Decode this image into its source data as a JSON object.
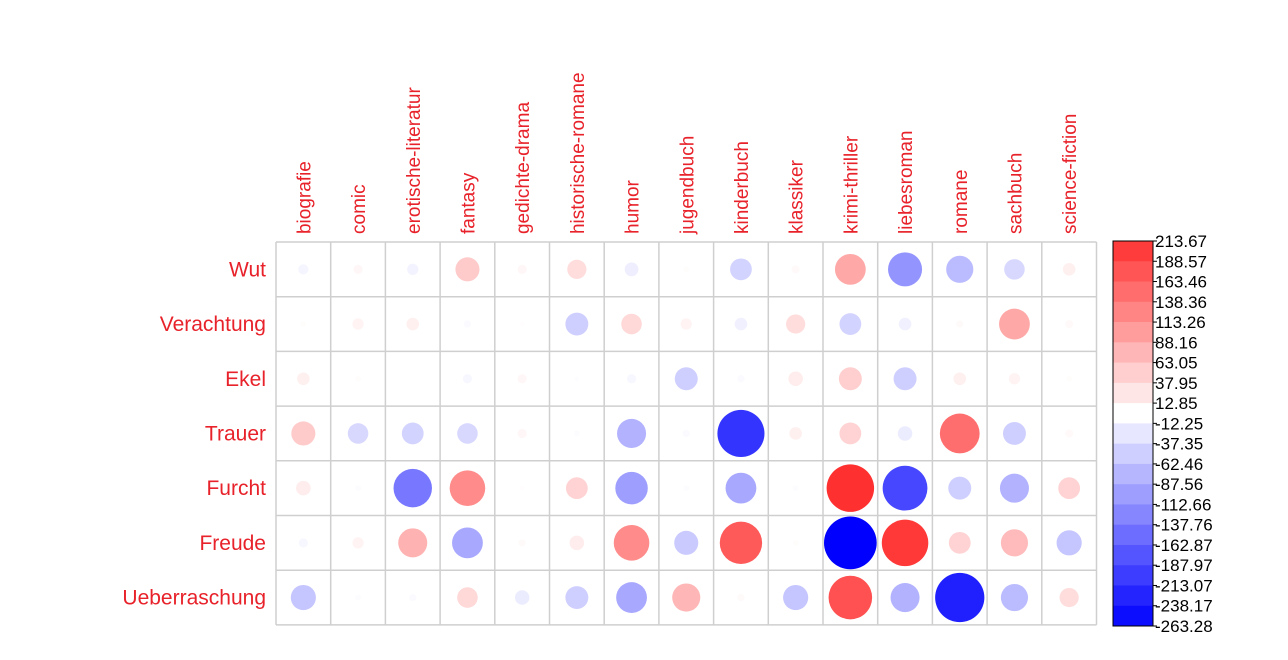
{
  "chart_data": {
    "type": "heatmap",
    "columns": [
      "biografie",
      "comic",
      "erotische-literatur",
      "fantasy",
      "gedichte-drama",
      "historische-romane",
      "humor",
      "jugendbuch",
      "kinderbuch",
      "klassiker",
      "krimi-thriller",
      "liebesroman",
      "romane",
      "sachbuch",
      "science-fiction"
    ],
    "rows": [
      "Wut",
      "Verachtung",
      "Ekel",
      "Trauer",
      "Furcht",
      "Freude",
      "Ueberraschung"
    ],
    "values": [
      [
        -10,
        8,
        -12,
        55,
        8,
        35,
        -18,
        3,
        -45,
        6,
        90,
        -110,
        -70,
        -40,
        15
      ],
      [
        3,
        12,
        15,
        -5,
        2,
        -50,
        40,
        12,
        -15,
        35,
        -45,
        -15,
        5,
        90,
        6
      ],
      [
        15,
        3,
        0,
        -8,
        8,
        -2,
        -8,
        -50,
        -5,
        20,
        50,
        -50,
        15,
        12,
        3
      ],
      [
        55,
        -40,
        -45,
        -40,
        8,
        -3,
        -80,
        -5,
        -210,
        15,
        45,
        -20,
        150,
        -50,
        6
      ],
      [
        20,
        -3,
        -140,
        120,
        2,
        45,
        -100,
        -3,
        -90,
        -3,
        213.67,
        -190,
        -50,
        -80,
        45
      ],
      [
        -8,
        12,
        80,
        -90,
        5,
        20,
        120,
        -55,
        170,
        3,
        -263.28,
        205,
        45,
        70,
        -60
      ],
      [
        -60,
        -3,
        -5,
        40,
        -20,
        -50,
        -90,
        75,
        5,
        -60,
        180,
        -80,
        -230,
        -70,
        35
      ]
    ],
    "color_scale": {
      "min": -263.28,
      "max": 213.67,
      "tick_labels": [
        "213.67",
        "188.57",
        "163.46",
        "138.36",
        "113.26",
        "88.16",
        "63.05",
        "37.95",
        "12.85",
        "-12.25",
        "-37.35",
        "-62.46",
        "-87.56",
        "-112.66",
        "-137.76",
        "-162.87",
        "-187.97",
        "-213.07",
        "-238.17",
        "-263.28"
      ],
      "positive_color": "#FF0000",
      "negative_color": "#0000FF"
    },
    "label_color": "#E8222A",
    "grid": true,
    "legend_position": "right"
  }
}
